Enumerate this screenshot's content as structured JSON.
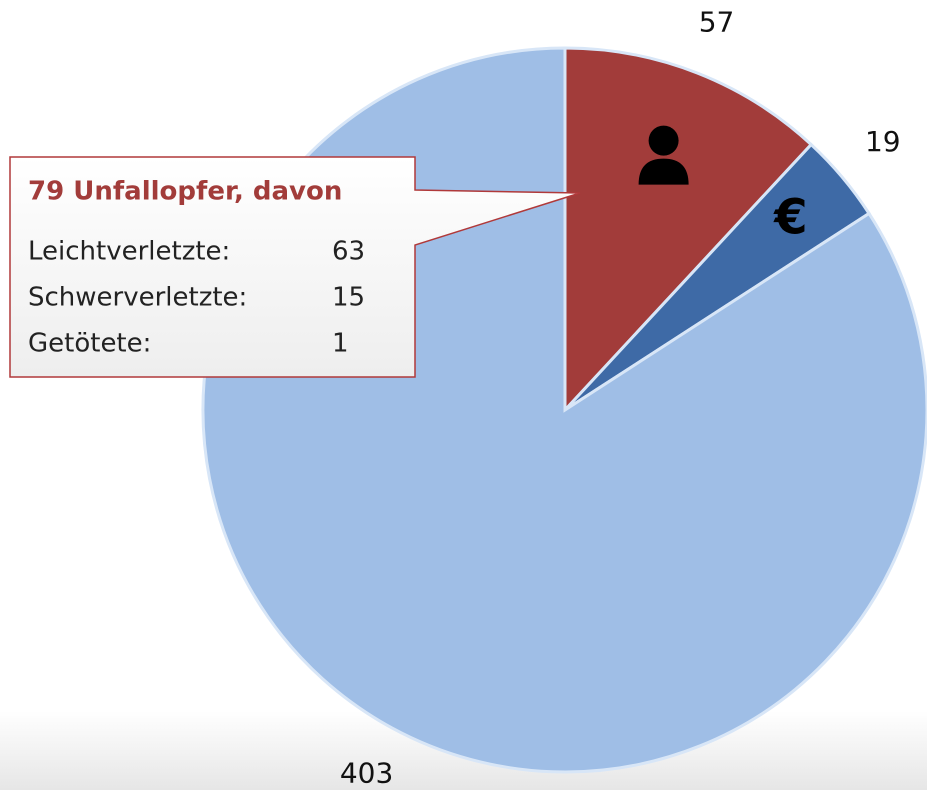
{
  "chart_data": {
    "type": "pie",
    "values": [
      57,
      19,
      403
    ],
    "colors": [
      "#a23c3a",
      "#3e6aa6",
      "#9fbee6"
    ],
    "symbol": "€",
    "callout": {
      "title": "79 Unfallopfer, davon",
      "rows": [
        {
          "label": "Leichtverletzte:",
          "value": 63
        },
        {
          "label": "Schwerverletzte:",
          "value": 15
        },
        {
          "label": "Getötete:",
          "value": 1
        }
      ]
    }
  }
}
